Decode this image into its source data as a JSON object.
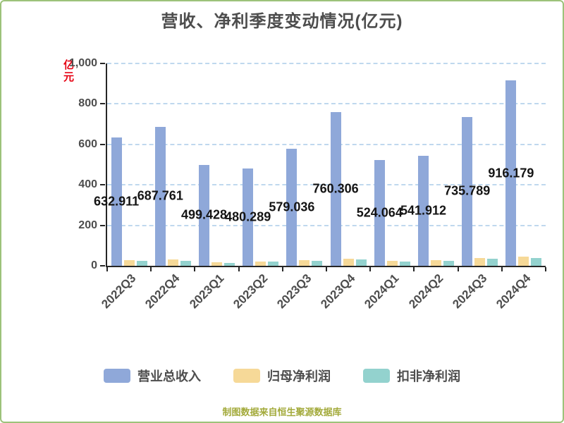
{
  "page": {
    "footer": "制图数据来自恒生聚源数据库"
  },
  "chart_data": {
    "type": "bar",
    "title": "营收、净利季度变动情况(亿元)",
    "ylabel": "亿元",
    "xlabel": "",
    "ylim": [
      0,
      1000
    ],
    "y_tick_values": [
      0,
      200,
      400,
      600,
      800,
      1000
    ],
    "y_tick_labels": [
      "0",
      "200",
      "400",
      "600",
      "800",
      "1,000"
    ],
    "grid": "horizontal-dashed",
    "legend_position": "bottom",
    "categories": [
      "2022Q3",
      "2022Q4",
      "2023Q1",
      "2023Q2",
      "2023Q3",
      "2023Q4",
      "2024Q1",
      "2024Q2",
      "2024Q3",
      "2024Q4"
    ],
    "series": [
      {
        "name": "营业总收入",
        "color": "#8FA8D9",
        "values": [
          632.911,
          687.761,
          499.428,
          480.289,
          579.036,
          760.306,
          524.064,
          541.912,
          735.789,
          916.179
        ],
        "labels_shown": true
      },
      {
        "name": "归母净利润",
        "color": "#F6D998",
        "values": [
          27,
          30,
          16,
          22,
          29,
          36,
          23,
          28,
          39,
          46
        ],
        "labels_shown": false,
        "values_estimated_from_pixels": true
      },
      {
        "name": "扣非净利润",
        "color": "#93D2CE",
        "values": [
          25,
          24,
          13,
          20,
          26,
          33,
          21,
          26,
          35,
          40
        ],
        "labels_shown": false,
        "values_estimated_from_pixels": true
      }
    ]
  }
}
